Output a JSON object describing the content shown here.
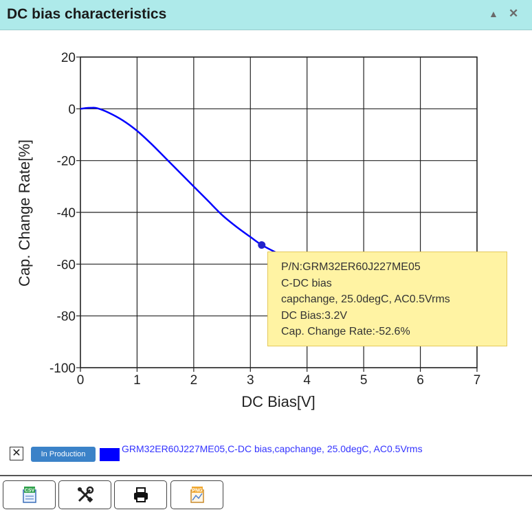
{
  "window": {
    "title": "DC bias characteristics"
  },
  "icons": {
    "collapse": "triangle-up-icon",
    "close": "close-icon"
  },
  "chart_data": {
    "type": "line",
    "xlabel": "DC Bias[V]",
    "ylabel": "Cap. Change Rate[%]",
    "xlim": [
      0,
      7
    ],
    "ylim": [
      -100,
      20
    ],
    "xticks": [
      0,
      1,
      2,
      3,
      4,
      5,
      6,
      7
    ],
    "yticks": [
      20,
      0,
      -20,
      -40,
      -60,
      -80,
      -100
    ],
    "grid": true,
    "series": [
      {
        "name": "GRM32ER60J227ME05,C-DC bias,capchange, 25.0degC, AC0.5Vrms",
        "color": "#0000ff",
        "x": [
          0,
          0.1,
          0.2,
          0.3,
          0.5,
          0.75,
          1.0,
          1.25,
          1.5,
          1.75,
          2.0,
          2.25,
          2.5,
          2.75,
          3.0,
          3.2,
          3.45
        ],
        "y": [
          0,
          0.3,
          0.4,
          0.2,
          -1.5,
          -4.5,
          -8.5,
          -13.5,
          -19,
          -24.5,
          -30,
          -35.5,
          -41,
          -45.5,
          -49.5,
          -52.6,
          -55.5
        ]
      }
    ],
    "highlight": {
      "x": 3.2,
      "y": -52.6
    }
  },
  "tooltip": {
    "pn": "P/N:GRM32ER60J227ME05",
    "type": "C-DC bias",
    "condition": "capchange, 25.0degC, AC0.5Vrms",
    "bias": "DC Bias:3.2V",
    "rate": "Cap. Change Rate:-52.6%"
  },
  "legend": {
    "checkbox": "✕",
    "badge": "In Production",
    "swatch_color": "#0000ff",
    "label": "GRM32ER60J227ME05,C-DC bias,capchange, 25.0degC, AC0.5Vrms"
  },
  "toolbar": [
    {
      "icon": "csv-export-icon",
      "badge": "CSV"
    },
    {
      "icon": "tools-icon"
    },
    {
      "icon": "print-icon"
    },
    {
      "icon": "png-export-icon",
      "badge": "PNG"
    }
  ]
}
